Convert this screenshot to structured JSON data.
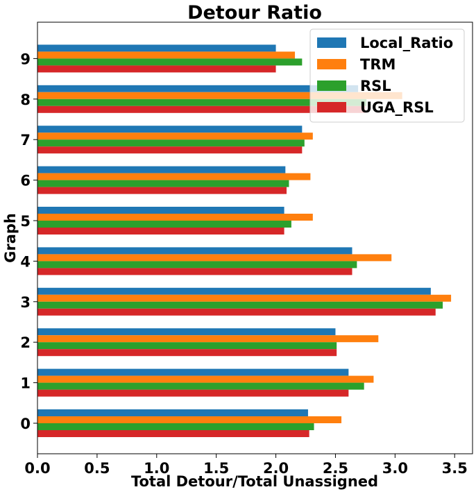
{
  "chart_data": {
    "type": "bar",
    "orientation": "horizontal",
    "title": "Detour Ratio",
    "xlabel": "Total Detour/Total Unassigned",
    "ylabel": "Graph",
    "categories": [
      "0",
      "1",
      "2",
      "3",
      "4",
      "5",
      "6",
      "7",
      "8",
      "9"
    ],
    "xlim": [
      0,
      3.65
    ],
    "xticks": [
      "0.0",
      "0.5",
      "1.0",
      "1.5",
      "2.0",
      "2.5",
      "3.0",
      "3.5"
    ],
    "legend_position": "top-right",
    "grid": false,
    "series": [
      {
        "name": "Local_Ratio",
        "color": "#1f77b4",
        "values": [
          2.27,
          2.61,
          2.5,
          3.3,
          2.64,
          2.07,
          2.08,
          2.22,
          2.69,
          2.0
        ]
      },
      {
        "name": "TRM",
        "color": "#ff7f0e",
        "values": [
          2.55,
          2.82,
          2.86,
          3.47,
          2.97,
          2.31,
          2.29,
          2.31,
          3.06,
          2.16
        ]
      },
      {
        "name": "RSL",
        "color": "#2ca02c",
        "values": [
          2.32,
          2.74,
          2.51,
          3.4,
          2.68,
          2.13,
          2.11,
          2.24,
          2.76,
          2.22
        ]
      },
      {
        "name": "UGA_RSL",
        "color": "#d62728",
        "values": [
          2.28,
          2.61,
          2.51,
          3.34,
          2.64,
          2.07,
          2.09,
          2.22,
          2.75,
          2.0
        ]
      }
    ]
  }
}
